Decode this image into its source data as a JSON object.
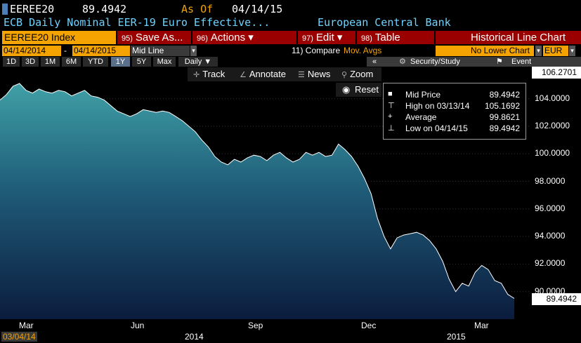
{
  "header": {
    "ticker": "EEREE20",
    "price": "89.4942",
    "as_of_label": "As Of",
    "as_of_date": "04/14/15",
    "description": "ECB Daily Nominal EER-19 Euro Effective...",
    "source": "European Central Bank"
  },
  "menubar": {
    "security": "EEREE20 Index",
    "items": [
      {
        "num": "95)",
        "label": "Save As..."
      },
      {
        "num": "96)",
        "label": "Actions ▾"
      },
      {
        "num": "97)",
        "label": "Edit ▾"
      },
      {
        "num": "98)",
        "label": "Table"
      }
    ],
    "chart_title": "Historical Line Chart"
  },
  "settings": {
    "start_date": "04/14/2014",
    "separator": "-",
    "end_date": "04/14/2015",
    "line_type": "Mid Line",
    "compare_label": "11) Compare",
    "compare_value": "Mov. Avgs",
    "lower_chart": "No Lower Chart",
    "currency": "EUR"
  },
  "periods": [
    "1D",
    "3D",
    "1M",
    "6M",
    "YTD",
    "1Y",
    "5Y",
    "Max"
  ],
  "active_period": "1Y",
  "frequency": "Daily ▼",
  "chartbar": {
    "collapse": "«",
    "security_study": "Security/Study",
    "event": "Event"
  },
  "tools": {
    "track": "Track",
    "annotate": "Annotate",
    "news": "News",
    "zoom": "Zoom",
    "reset": "Reset"
  },
  "legend": {
    "rows": [
      {
        "icon": "■",
        "label": "Mid Price",
        "value": "89.4942"
      },
      {
        "icon": "⊤",
        "label": "High on 03/13/14",
        "value": "105.1692"
      },
      {
        "icon": "+",
        "label": "Average",
        "value": "99.8621"
      },
      {
        "icon": "⊥",
        "label": "Low on 04/14/15",
        "value": "89.4942"
      }
    ]
  },
  "yaxis": {
    "ticks": [
      "104.0000",
      "102.0000",
      "100.0000",
      "98.0000",
      "96.0000",
      "94.0000",
      "92.0000",
      "90.0000"
    ],
    "top_label": "106.2701",
    "last_label": "89.4942"
  },
  "xaxis": {
    "months": [
      "Mar",
      "Jun",
      "Sep",
      "Dec",
      "Mar"
    ],
    "years": [
      "2014",
      "2015"
    ],
    "start": "03/04/14"
  },
  "chart_data": {
    "type": "area",
    "title": "",
    "ylim": [
      88.0,
      106.27
    ],
    "series": [
      {
        "name": "Mid Price",
        "values": [
          103.9,
          104.3,
          104.9,
          105.1,
          104.6,
          104.4,
          104.7,
          104.5,
          104.4,
          104.6,
          104.5,
          104.2,
          104.4,
          104.6,
          104.2,
          104.1,
          103.9,
          103.5,
          103.1,
          102.9,
          102.7,
          102.9,
          103.2,
          103.1,
          103.0,
          103.1,
          103.0,
          102.7,
          102.4,
          102.0,
          101.6,
          101.0,
          100.5,
          99.8,
          99.4,
          99.2,
          99.6,
          99.4,
          99.7,
          99.9,
          99.8,
          99.5,
          99.9,
          100.1,
          99.7,
          99.4,
          99.6,
          100.1,
          99.9,
          100.1,
          99.8,
          99.9,
          100.7,
          100.3,
          99.8,
          99.1,
          98.2,
          97.1,
          95.3,
          94.0,
          93.1,
          93.9,
          94.1,
          94.2,
          94.3,
          94.1,
          93.7,
          93.1,
          92.2,
          90.9,
          90.0,
          90.6,
          90.4,
          91.4,
          91.9,
          91.6,
          90.8,
          90.6,
          89.8,
          89.5
        ]
      }
    ]
  }
}
